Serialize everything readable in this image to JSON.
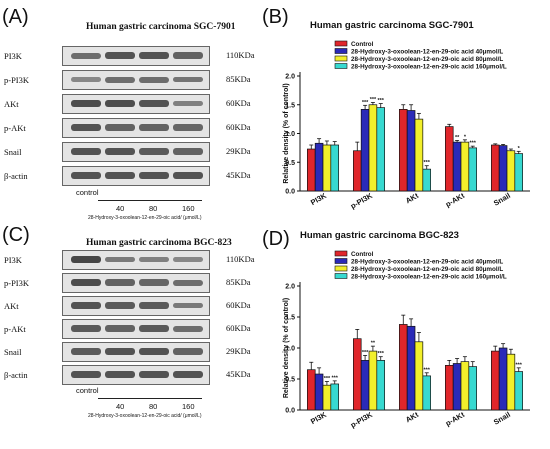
{
  "panels": {
    "A": {
      "label": "(A)",
      "title": "Human gastric carcinoma SGC-7901",
      "rows": [
        {
          "name": "PI3K",
          "kda": "110KDa"
        },
        {
          "name": "p-PI3K",
          "kda": "85KDa"
        },
        {
          "name": "AKt",
          "kda": "60KDa"
        },
        {
          "name": "p-AKt",
          "kda": "60KDa"
        },
        {
          "name": "Snail",
          "kda": "29KDa"
        },
        {
          "name": "β-actin",
          "kda": "45KDa"
        }
      ],
      "lanes": [
        "control",
        "40",
        "80",
        "160"
      ],
      "treatment": "28-Hydroxy-3-oxoolean-12-en-29-oic acid/ (μmol/L)",
      "band_intensity": [
        [
          0.6,
          0.8,
          0.8,
          0.7
        ],
        [
          0.4,
          0.6,
          0.6,
          0.55
        ],
        [
          0.85,
          0.85,
          0.8,
          0.45
        ],
        [
          0.8,
          0.7,
          0.7,
          0.65
        ],
        [
          0.8,
          0.8,
          0.75,
          0.7
        ],
        [
          0.8,
          0.8,
          0.8,
          0.8
        ]
      ]
    },
    "C": {
      "label": "(C)",
      "title": "Human gastric carcinoma BGC-823",
      "rows": [
        {
          "name": "PI3K",
          "kda": "110KDa"
        },
        {
          "name": "p-PI3K",
          "kda": "85KDa"
        },
        {
          "name": "AKt",
          "kda": "60KDa"
        },
        {
          "name": "p-AKt",
          "kda": "60KDa"
        },
        {
          "name": "Snail",
          "kda": "29KDa"
        },
        {
          "name": "β-actin",
          "kda": "45KDa"
        }
      ],
      "lanes": [
        "control",
        "40",
        "80",
        "160"
      ],
      "treatment": "28-Hydroxy-3-oxoolean-12-en-29-oic acid/ (μmol/L)",
      "band_intensity": [
        [
          0.9,
          0.5,
          0.45,
          0.4
        ],
        [
          0.85,
          0.7,
          0.65,
          0.6
        ],
        [
          0.8,
          0.75,
          0.75,
          0.5
        ],
        [
          0.75,
          0.7,
          0.75,
          0.6
        ],
        [
          0.75,
          0.8,
          0.8,
          0.7
        ],
        [
          0.8,
          0.8,
          0.8,
          0.8
        ]
      ]
    }
  },
  "colors": {
    "control": "#e0262b",
    "c40": "#2a2ab8",
    "c80": "#f2ef2b",
    "c160": "#37d9d0"
  },
  "chart_data": [
    {
      "panel_label": "(B)",
      "type": "bar",
      "title": "Human gastric carcinoma SGC-7901",
      "ylabel": "Relative density (% of control)",
      "ylim": [
        0.0,
        2.0
      ],
      "yticks": [
        "0.0",
        "0.5",
        "1.0",
        "1.5",
        "2.0"
      ],
      "categories": [
        "PI3K",
        "p-PI3K",
        "AKt",
        "p-AKt",
        "Snail"
      ],
      "series": [
        {
          "name": "Control",
          "values": [
            0.73,
            0.7,
            1.42,
            1.12,
            0.8
          ],
          "errors": [
            0.07,
            0.15,
            0.08,
            0.04,
            0.02
          ]
        },
        {
          "name": "28-Hydroxy-3-oxoolean-12-en-29-oic acid  40μmol/L",
          "values": [
            0.83,
            1.42,
            1.4,
            0.85,
            0.79
          ],
          "errors": [
            0.08,
            0.07,
            0.1,
            0.03,
            0.02
          ]
        },
        {
          "name": "28-Hydroxy-3-oxoolean-12-en-29-oic acid  80μmol/L",
          "values": [
            0.8,
            1.5,
            1.25,
            0.85,
            0.7
          ],
          "errors": [
            0.07,
            0.04,
            0.1,
            0.04,
            0.03
          ]
        },
        {
          "name": "28-Hydroxy-3-oxoolean-12-en-29-oic acid  160μmol/L",
          "values": [
            0.8,
            1.45,
            0.38,
            0.75,
            0.65
          ],
          "errors": [
            0.06,
            0.07,
            0.06,
            0.03,
            0.04
          ]
        }
      ],
      "significance": [
        [
          "",
          "",
          "",
          ""
        ],
        [
          "",
          "***",
          "***",
          "***"
        ],
        [
          "",
          "",
          "",
          "***"
        ],
        [
          "",
          "**",
          "*",
          "***"
        ],
        [
          "",
          "",
          "",
          "*"
        ]
      ]
    },
    {
      "panel_label": "(D)",
      "type": "bar",
      "title": "Human gastric carcinoma BGC-823",
      "ylabel": "Relative density (% of control)",
      "ylim": [
        0.0,
        2.0
      ],
      "yticks": [
        "0.0",
        "0.5",
        "1.0",
        "1.5",
        "2.0"
      ],
      "categories": [
        "PI3K",
        "p-PI3K",
        "AKt",
        "p-AKt",
        "Snail"
      ],
      "series": [
        {
          "name": "Control",
          "values": [
            0.65,
            1.15,
            1.38,
            0.72,
            0.95
          ],
          "errors": [
            0.12,
            0.15,
            0.15,
            0.08,
            0.08
          ]
        },
        {
          "name": "28-Hydroxy-3-oxoolean-12-en-29-oic acid  40μmol/L",
          "values": [
            0.58,
            0.8,
            1.35,
            0.75,
            1.0
          ],
          "errors": [
            0.1,
            0.08,
            0.12,
            0.08,
            0.07
          ]
        },
        {
          "name": "28-Hydroxy-3-oxoolean-12-en-29-oic acid  80μmol/L",
          "values": [
            0.4,
            0.95,
            1.1,
            0.78,
            0.9
          ],
          "errors": [
            0.06,
            0.08,
            0.15,
            0.08,
            0.08
          ]
        },
        {
          "name": "28-Hydroxy-3-oxoolean-12-en-29-oic acid  160μmol/L",
          "values": [
            0.42,
            0.8,
            0.55,
            0.7,
            0.62
          ],
          "errors": [
            0.05,
            0.06,
            0.05,
            0.08,
            0.06
          ]
        }
      ],
      "significance": [
        [
          "",
          "",
          "***",
          "***"
        ],
        [
          "",
          "***",
          "**",
          "***"
        ],
        [
          "",
          "",
          "",
          "***"
        ],
        [
          "",
          "",
          "",
          ""
        ],
        [
          "",
          "",
          "",
          "***"
        ]
      ]
    }
  ]
}
